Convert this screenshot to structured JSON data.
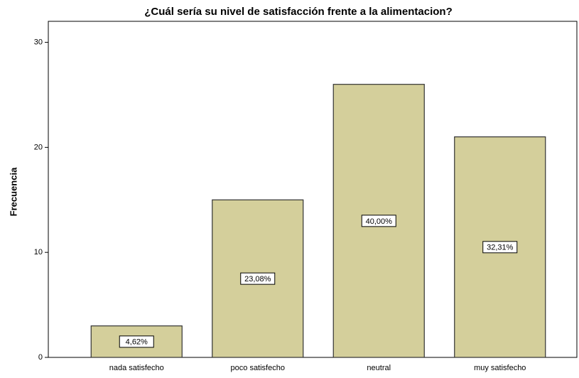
{
  "chart_data": {
    "type": "bar",
    "title": "¿Cuál sería su nivel de satisfacción frente a la alimentacion?",
    "ylabel": "Frecuencia",
    "categories": [
      "nada satisfecho",
      "poco satisfecho",
      "neutral",
      "muy satisfecho"
    ],
    "values": [
      3,
      15,
      26,
      21
    ],
    "percent_labels": [
      "4,62%",
      "23,08%",
      "40,00%",
      "32,31%"
    ],
    "color": "#d4cf9b",
    "ylim": [
      0,
      32
    ],
    "yticks": [
      0,
      10,
      20,
      30
    ],
    "grid": false
  }
}
